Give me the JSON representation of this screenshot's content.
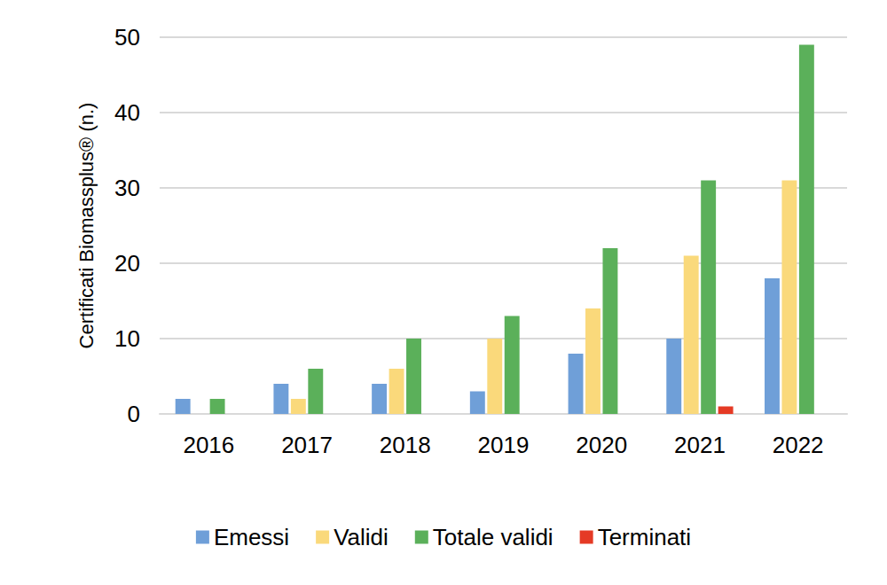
{
  "chart_data": {
    "type": "bar",
    "y_label": "Certificati Biomassplus® (n.)",
    "categories": [
      "2016",
      "2017",
      "2018",
      "2019",
      "2020",
      "2021",
      "2022"
    ],
    "series": [
      {
        "name": "Emessi",
        "color": "#6f9fd8",
        "values": [
          2,
          4,
          4,
          3,
          8,
          10,
          18
        ]
      },
      {
        "name": "Validi",
        "color": "#fad97b",
        "values": [
          0,
          2,
          6,
          10,
          14,
          21,
          31
        ]
      },
      {
        "name": "Totale validi",
        "color": "#5bb05a",
        "values": [
          2,
          6,
          10,
          13,
          22,
          31,
          49
        ]
      },
      {
        "name": "Terminati",
        "color": "#e53a25",
        "values": [
          0,
          0,
          0,
          0,
          0,
          1,
          0
        ]
      }
    ],
    "ylim": [
      0,
      50
    ],
    "yticks": [
      0,
      10,
      20,
      30,
      40,
      50
    ],
    "grid": true,
    "legend": "bottom"
  }
}
